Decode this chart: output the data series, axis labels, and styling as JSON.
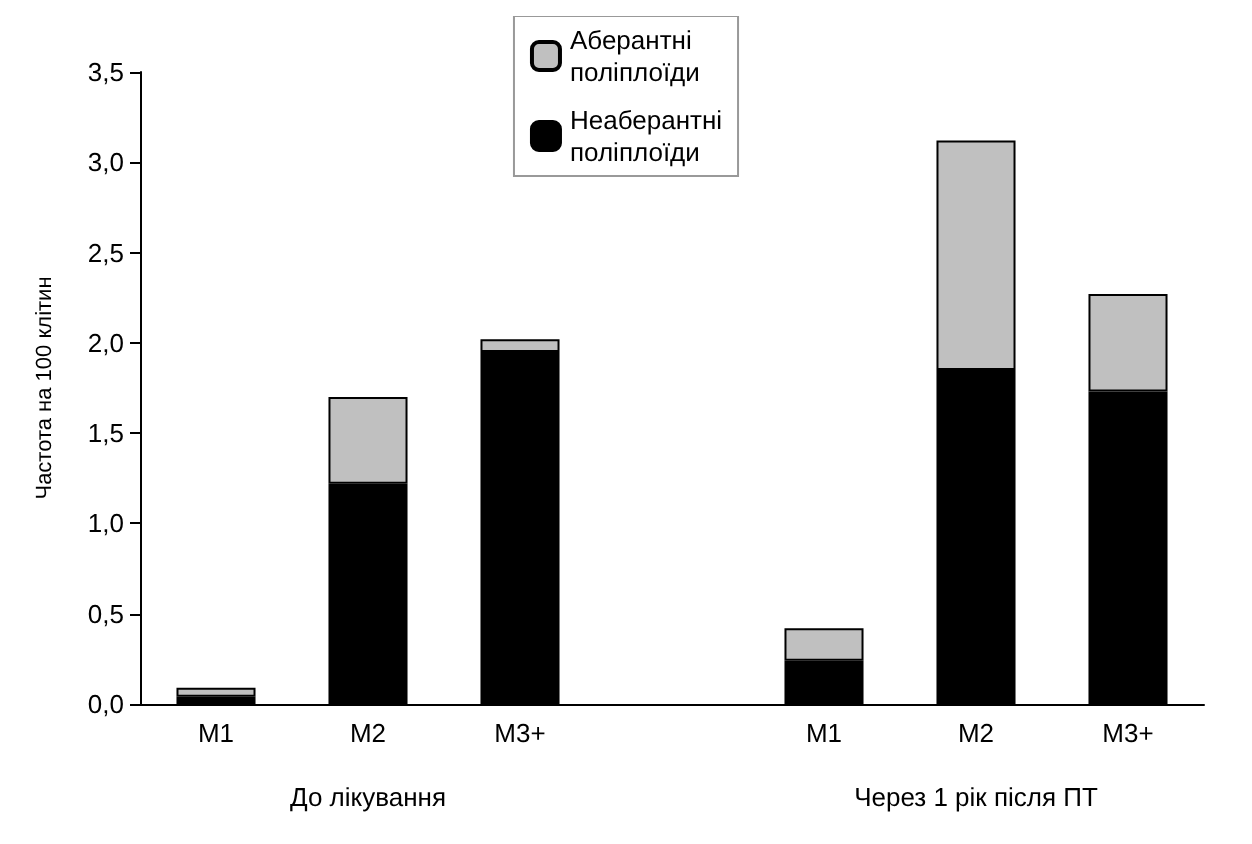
{
  "chart_data": {
    "type": "bar",
    "stacked": true,
    "ylabel": "Частота на 100 клітин",
    "categories": [
      "M1",
      "M2",
      "M3+",
      null,
      "M1",
      "M2",
      "M3+"
    ],
    "series": [
      {
        "name": "Неаберантні поліплоїди",
        "color": "#000000",
        "values": [
          0.04,
          1.22,
          1.95,
          null,
          0.24,
          1.85,
          1.73
        ]
      },
      {
        "name": "Аберантні поліплоїди",
        "color": "#c0c0c0",
        "values": [
          0.05,
          0.48,
          0.07,
          null,
          0.18,
          1.27,
          0.54
        ]
      }
    ],
    "ylim": [
      0,
      3.5
    ],
    "yticks": [
      {
        "value": 0,
        "label": "0,0"
      },
      {
        "value": 0.5,
        "label": "0,5"
      },
      {
        "value": 1,
        "label": "1,0"
      },
      {
        "value": 1.5,
        "label": "1,5"
      },
      {
        "value": 2,
        "label": "2,0"
      },
      {
        "value": 2.5,
        "label": "2,5"
      },
      {
        "value": 3,
        "label": "3,0"
      },
      {
        "value": 3.5,
        "label": "3,5"
      }
    ],
    "grid": false,
    "legend": "top",
    "annotations": [
      "До лікування",
      "Через 1 рік після ПТ"
    ]
  }
}
